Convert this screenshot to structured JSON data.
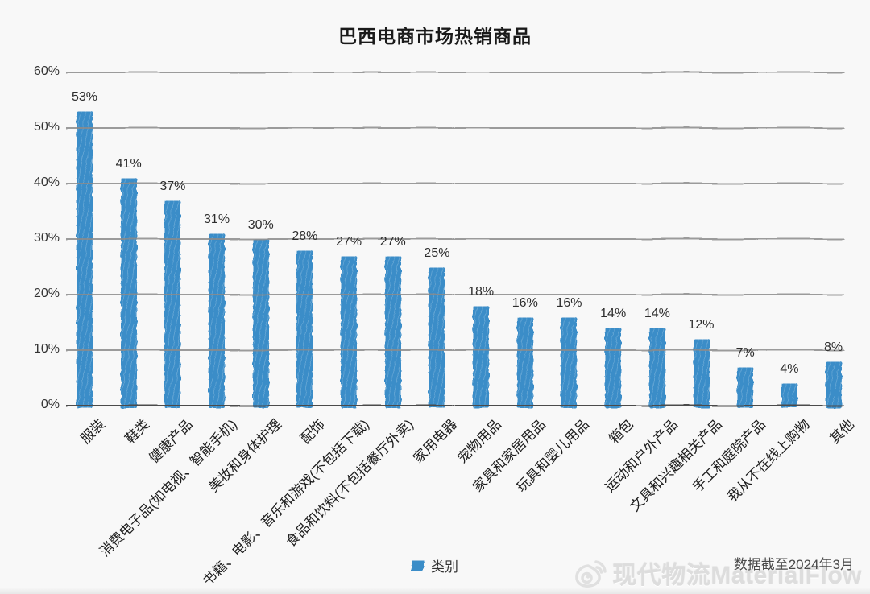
{
  "title": "巴西电商市场热销商品",
  "legend": {
    "label": "类别"
  },
  "footnote": "数据截至2024年3月",
  "watermark": {
    "text": "现代物流MaterialFlow",
    "icon": "weibo-logo-icon"
  },
  "colors": {
    "bar": "#3a8dc8",
    "gridline": "#8b8b8b",
    "axis_line": "#4c4c4c",
    "text": "#333333",
    "background": "#f8f8f8",
    "watermark": "#dddddd"
  },
  "chart_data": {
    "type": "bar",
    "title": "巴西电商市场热销商品",
    "categories": [
      "服装",
      "鞋类",
      "健康产品",
      "消费电子品(如电视、智能手机)",
      "美妆和身体护理",
      "配饰",
      "书籍、电影、音乐和游戏(不包括下载)",
      "食品和饮料(不包括餐厅外卖)",
      "家用电器",
      "宠物用品",
      "家具和家居用品",
      "玩具和婴儿用品",
      "箱包",
      "运动和户外产品",
      "文具和兴趣相关产品",
      "手工和庭院产品",
      "我从不在线上购物",
      "其他"
    ],
    "values": [
      53,
      41,
      37,
      31,
      30,
      28,
      27,
      27,
      25,
      18,
      16,
      16,
      14,
      14,
      12,
      7,
      4,
      8
    ],
    "value_labels": [
      "53%",
      "41%",
      "37%",
      "31%",
      "30%",
      "28%",
      "27%",
      "27%",
      "25%",
      "18%",
      "16%",
      "16%",
      "14%",
      "14%",
      "12%",
      "7%",
      "4%",
      "8%"
    ],
    "yticks": [
      "0%",
      "10%",
      "20%",
      "30%",
      "40%",
      "50%",
      "60%"
    ],
    "ylim": [
      0,
      60
    ],
    "xlabel": "",
    "ylabel": "",
    "grid": true,
    "bar_style": "hand-drawn-sketch",
    "legend": [
      "类别"
    ],
    "legend_position": "bottom-center"
  }
}
